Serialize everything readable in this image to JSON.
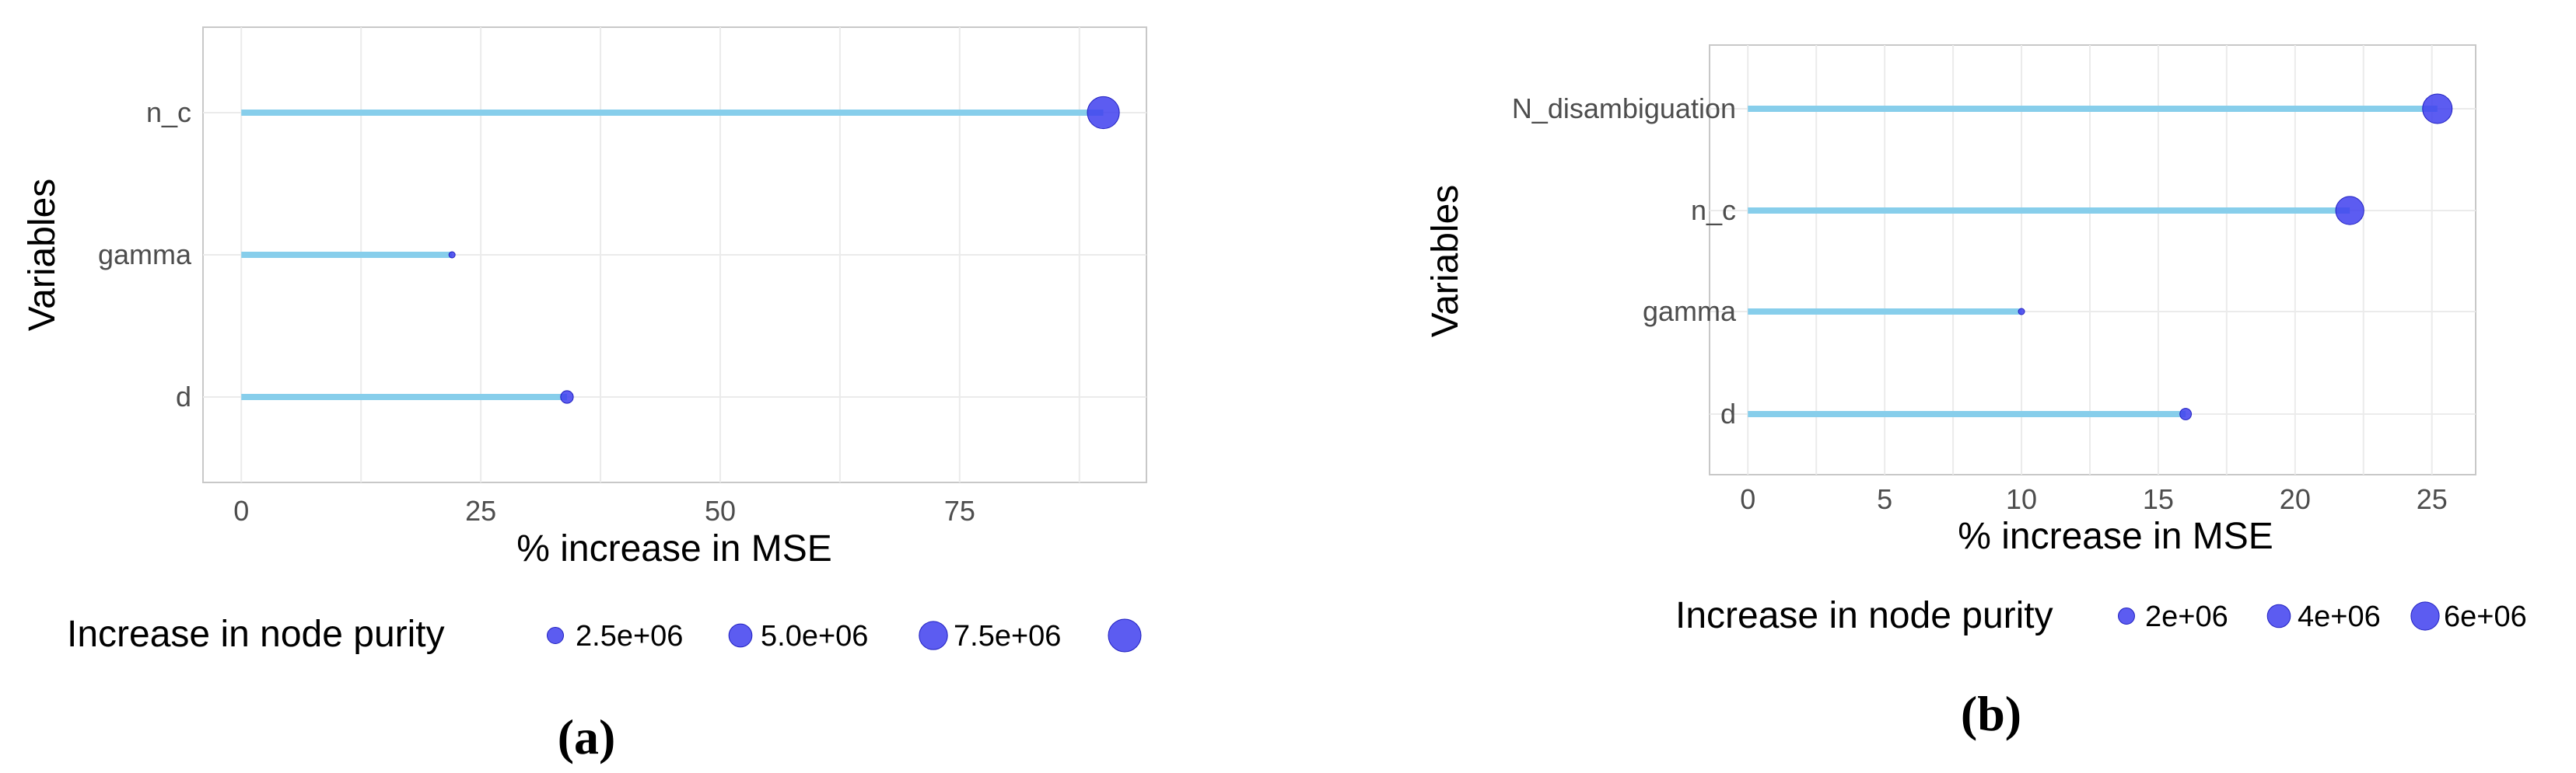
{
  "chart_data": [
    {
      "panel": "(a)",
      "type": "lollipop",
      "orientation": "horizontal",
      "xlabel": "% increase in MSE",
      "ylabel": "Variables",
      "xlim": [
        -4,
        94.5
      ],
      "xticks": [
        0,
        25,
        50,
        75
      ],
      "categories": [
        "n_c",
        "gamma",
        "d"
      ],
      "values": [
        90,
        22,
        34
      ],
      "size_values": [
        9600000,
        200000,
        1500000
      ],
      "size_legend": {
        "title": "Increase in node purity",
        "entries": [
          "2.5e+06",
          "5.0e+06",
          "7.5e+06",
          ""
        ],
        "entry_values": [
          2500000,
          5000000,
          7500000,
          10000000
        ]
      },
      "grid": true,
      "legend_position": "bottom"
    },
    {
      "panel": "(b)",
      "type": "lollipop",
      "orientation": "horizontal",
      "xlabel": "% increase in MSE",
      "ylabel": "Variables",
      "xlim": [
        -1.4,
        26.6
      ],
      "xticks": [
        0,
        5,
        10,
        15,
        20,
        25
      ],
      "categories": [
        "N_disambiguation",
        "n_c",
        "gamma",
        "d"
      ],
      "values": [
        25.2,
        22,
        10,
        16
      ],
      "size_values": [
        6600000,
        6000000,
        200000,
        1000000
      ],
      "size_legend": {
        "title": "Increase in node purity",
        "entries": [
          "2e+06",
          "4e+06",
          "6e+06"
        ],
        "entry_values": [
          2000000,
          4000000,
          6000000
        ]
      },
      "grid": true,
      "legend_position": "bottom"
    }
  ],
  "colors": {
    "stem": "#87ceeb",
    "point": "#4040ee",
    "grid": "#ebebeb",
    "panel_border": "#c8c8c8"
  },
  "panel_captions": [
    "(a)",
    "(b)"
  ]
}
